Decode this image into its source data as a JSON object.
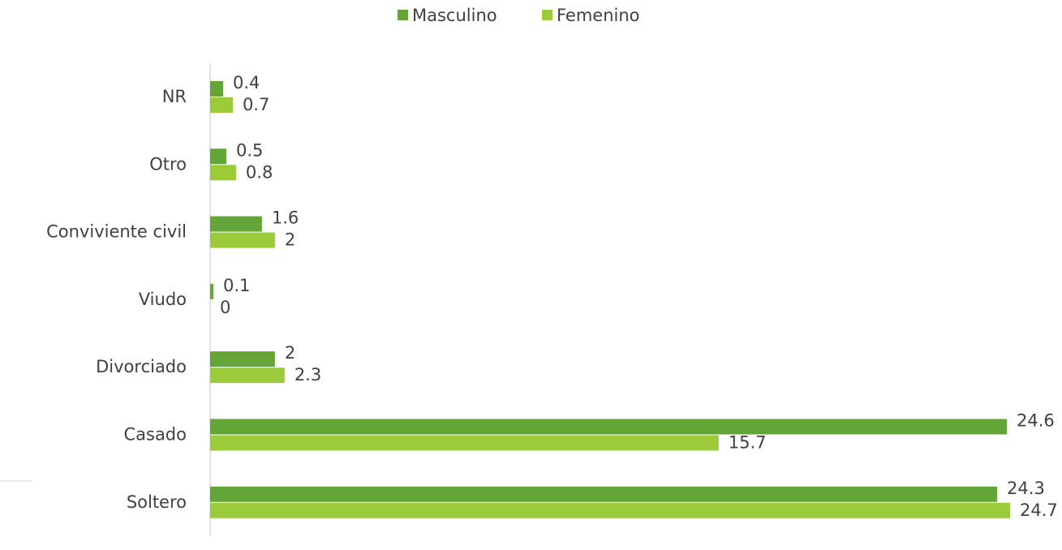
{
  "chart_data": {
    "type": "hbar",
    "categories": [
      "NR",
      "Otro",
      "Conviviente civil",
      "Viudo",
      "Divorciado",
      "Casado",
      "Soltero"
    ],
    "series": [
      {
        "name": "Masculino",
        "color": "#63a537",
        "values": [
          0.4,
          0.5,
          1.6,
          0.1,
          2,
          24.6,
          24.3
        ]
      },
      {
        "name": "Femenino",
        "color": "#9bcb3b",
        "values": [
          0.7,
          0.8,
          2,
          0,
          2.3,
          15.7,
          24.7
        ]
      }
    ],
    "legend": "top"
  }
}
